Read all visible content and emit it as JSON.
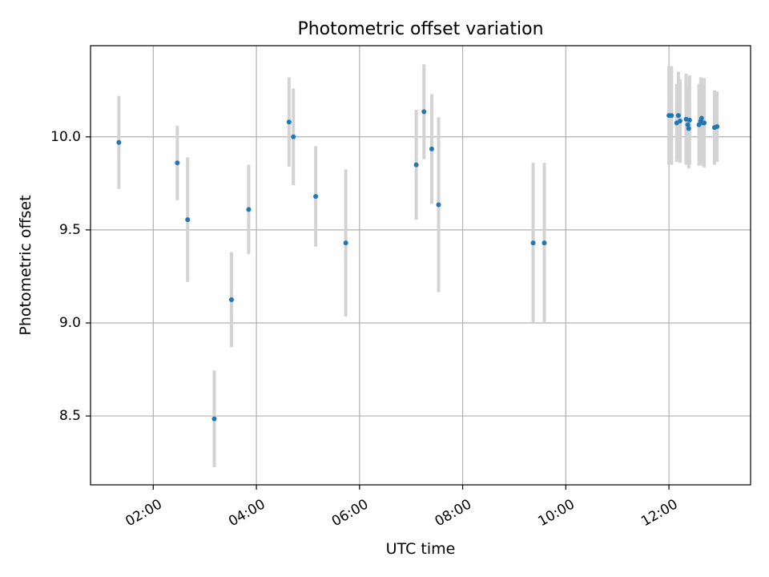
{
  "chart_data": {
    "type": "scatter",
    "title": "Photometric offset variation",
    "xlabel": "UTC time",
    "ylabel": "Photometric offset",
    "x_ticks": [
      "02:00",
      "04:00",
      "06:00",
      "08:00",
      "10:00",
      "12:00"
    ],
    "y_ticks": [
      "8.5",
      "9.0",
      "9.5",
      "10.0"
    ],
    "grid": true,
    "xlim": [
      "00:47",
      "13:35"
    ],
    "ylim": [
      8.13,
      10.49
    ],
    "colors": {
      "marker": "#1f77b4",
      "errorbar": "#d3d3d3",
      "grid": "#b0b0b0"
    },
    "points": [
      {
        "x": "01:20",
        "y": 9.97,
        "err": 0.25
      },
      {
        "x": "02:28",
        "y": 9.86,
        "err": 0.2
      },
      {
        "x": "02:40",
        "y": 9.555,
        "err": 0.335
      },
      {
        "x": "03:11",
        "y": 8.485,
        "err": 0.26
      },
      {
        "x": "03:31",
        "y": 9.125,
        "err": 0.255
      },
      {
        "x": "03:51",
        "y": 9.61,
        "err": 0.24
      },
      {
        "x": "04:38",
        "y": 10.08,
        "err": 0.24
      },
      {
        "x": "04:43",
        "y": 10.0,
        "err": 0.26
      },
      {
        "x": "05:09",
        "y": 9.68,
        "err": 0.27
      },
      {
        "x": "05:44",
        "y": 9.43,
        "err": 0.395
      },
      {
        "x": "07:06",
        "y": 9.85,
        "err": 0.295
      },
      {
        "x": "07:15",
        "y": 10.135,
        "err": 0.255
      },
      {
        "x": "07:24",
        "y": 9.935,
        "err": 0.295
      },
      {
        "x": "07:32",
        "y": 9.635,
        "err": 0.47
      },
      {
        "x": "09:22",
        "y": 9.43,
        "err": 0.43
      },
      {
        "x": "09:35",
        "y": 9.43,
        "err": 0.43
      },
      {
        "x": "12:00",
        "y": 10.115,
        "err": 0.265
      },
      {
        "x": "12:03",
        "y": 10.115,
        "err": 0.265
      },
      {
        "x": "12:09",
        "y": 10.075,
        "err": 0.21
      },
      {
        "x": "12:11",
        "y": 10.115,
        "err": 0.235
      },
      {
        "x": "12:13",
        "y": 10.085,
        "err": 0.225
      },
      {
        "x": "12:20",
        "y": 10.095,
        "err": 0.245
      },
      {
        "x": "12:22",
        "y": 10.065,
        "err": 0.205
      },
      {
        "x": "12:23",
        "y": 10.045,
        "err": 0.215
      },
      {
        "x": "12:24",
        "y": 10.09,
        "err": 0.24
      },
      {
        "x": "12:35",
        "y": 10.065,
        "err": 0.22
      },
      {
        "x": "12:37",
        "y": 10.085,
        "err": 0.235
      },
      {
        "x": "12:38",
        "y": 10.1,
        "err": 0.22
      },
      {
        "x": "12:40",
        "y": 10.075,
        "err": 0.23
      },
      {
        "x": "12:41",
        "y": 10.075,
        "err": 0.24
      },
      {
        "x": "12:53",
        "y": 10.05,
        "err": 0.2
      },
      {
        "x": "12:56",
        "y": 10.055,
        "err": 0.19
      }
    ]
  }
}
